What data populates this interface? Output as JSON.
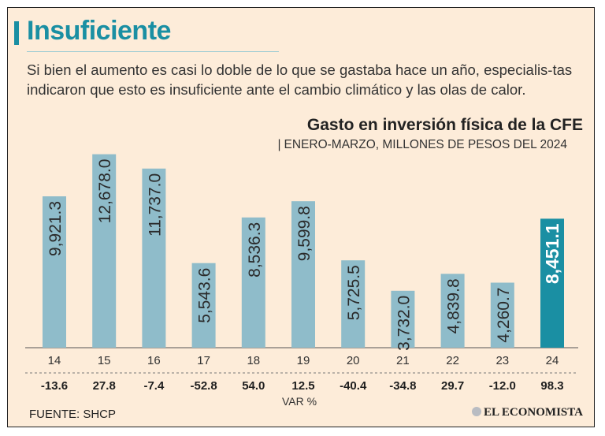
{
  "header": {
    "title": "Insuficiente",
    "lede": "Si bien el aumento es casi lo doble de lo que se gastaba hace un año, especialis-tas indicaron que esto es insuficiente ante el cambio climático y las olas de calor."
  },
  "chart_data": {
    "type": "bar",
    "title": "Gasto en inversión física de la CFE",
    "subtitle": "ENERO-MARZO, MILLONES DE PESOS DEL 2024",
    "categories": [
      "14",
      "15",
      "16",
      "17",
      "18",
      "19",
      "20",
      "21",
      "22",
      "23",
      "24"
    ],
    "values": [
      9921.3,
      12678.0,
      11737.0,
      5543.6,
      8536.3,
      9599.8,
      5725.5,
      3732.0,
      4839.8,
      4260.7,
      8451.1
    ],
    "value_labels": [
      "9,921.3",
      "12,678.0",
      "11,737.0",
      "5,543.6",
      "8,536.3",
      "9,599.8",
      "5,725.5",
      "3,732.0",
      "4,839.8",
      "4,260.7",
      "8,451.1"
    ],
    "var_pct": [
      "-13.6",
      "27.8",
      "-7.4",
      "-52.8",
      "54.0",
      "12.5",
      "-40.4",
      "-34.8",
      "29.7",
      "-12.0",
      "98.3"
    ],
    "var_label": "VAR %",
    "ylim": [
      0,
      14000
    ],
    "grid": false,
    "colors": {
      "bar": "#8fbcca",
      "highlight": "#1a8fa3",
      "highlight_label": "#ffffff"
    },
    "highlight_index": 10
  },
  "footer": {
    "source": "FUENTE: SHCP",
    "logo_text": "EL ECONOMISTA"
  }
}
